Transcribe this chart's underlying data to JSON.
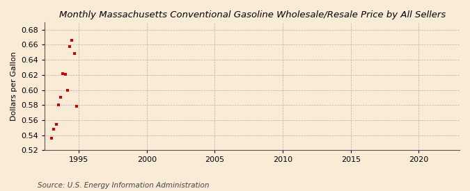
{
  "title": "Monthly Massachusetts Conventional Gasoline Wholesale/Resale Price by All Sellers",
  "ylabel": "Dollars per Gallon",
  "source": "Source: U.S. Energy Information Administration",
  "background_color": "#faebd7",
  "marker_color": "#cc0000",
  "xlim": [
    1992.5,
    2023
  ],
  "ylim": [
    0.52,
    0.69
  ],
  "xticks": [
    1995,
    2000,
    2005,
    2010,
    2015,
    2020
  ],
  "yticks": [
    0.52,
    0.54,
    0.56,
    0.58,
    0.6,
    0.62,
    0.64,
    0.66,
    0.68
  ],
  "data_x": [
    1993.0,
    1993.17,
    1993.33,
    1993.5,
    1993.67,
    1993.83,
    1994.0,
    1994.17,
    1994.33,
    1994.5,
    1994.67,
    1994.83
  ],
  "data_y": [
    0.536,
    0.548,
    0.554,
    0.58,
    0.59,
    0.622,
    0.621,
    0.6,
    0.658,
    0.666,
    0.648,
    0.578
  ],
  "grid_color": "#999999",
  "title_fontsize": 9.5,
  "ylabel_fontsize": 8,
  "tick_fontsize": 8,
  "source_fontsize": 7.5
}
